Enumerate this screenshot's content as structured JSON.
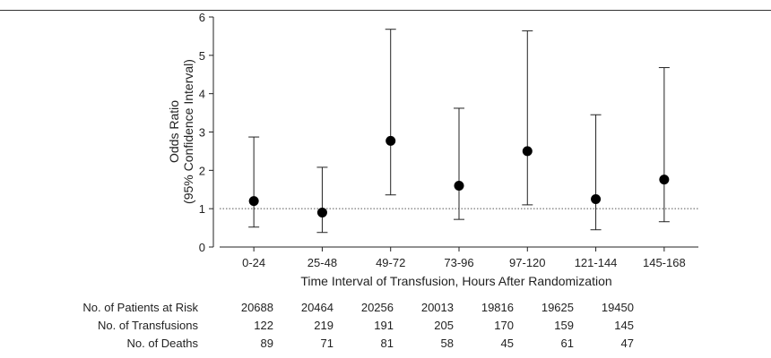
{
  "chart_data": {
    "type": "errorbar",
    "categories": [
      "0-24",
      "25-48",
      "49-72",
      "73-96",
      "97-120",
      "121-144",
      "145-168"
    ],
    "points": [
      {
        "x": "0-24",
        "or": 1.2,
        "lower": 0.52,
        "upper": 2.87
      },
      {
        "x": "25-48",
        "or": 0.9,
        "lower": 0.38,
        "upper": 2.08
      },
      {
        "x": "49-72",
        "or": 2.77,
        "lower": 1.36,
        "upper": 5.68
      },
      {
        "x": "73-96",
        "or": 1.6,
        "lower": 0.72,
        "upper": 3.62
      },
      {
        "x": "97-120",
        "or": 2.5,
        "lower": 1.1,
        "upper": 5.64
      },
      {
        "x": "121-144",
        "or": 1.25,
        "lower": 0.45,
        "upper": 3.45
      },
      {
        "x": "145-168",
        "or": 1.76,
        "lower": 0.66,
        "upper": 4.68
      }
    ],
    "ylim": [
      0,
      6
    ],
    "yticks": [
      "0",
      "1",
      "2",
      "3",
      "4",
      "5",
      "6"
    ],
    "reference_line": 1,
    "ylabel_line1": "Odds Ratio",
    "ylabel_line2": "(95% Confidence Interval)",
    "xlabel": "Time Interval of Transfusion, Hours After Randomization"
  },
  "risk_table": {
    "rows": [
      {
        "label": "No. of Patients at Risk",
        "values": [
          "20688",
          "20464",
          "20256",
          "20013",
          "19816",
          "19625",
          "19450"
        ]
      },
      {
        "label": "No. of Transfusions",
        "values": [
          "122",
          "219",
          "191",
          "205",
          "170",
          "159",
          "145"
        ]
      },
      {
        "label": "No. of Deaths",
        "values": [
          "89",
          "71",
          "81",
          "58",
          "45",
          "61",
          "47"
        ]
      }
    ]
  }
}
